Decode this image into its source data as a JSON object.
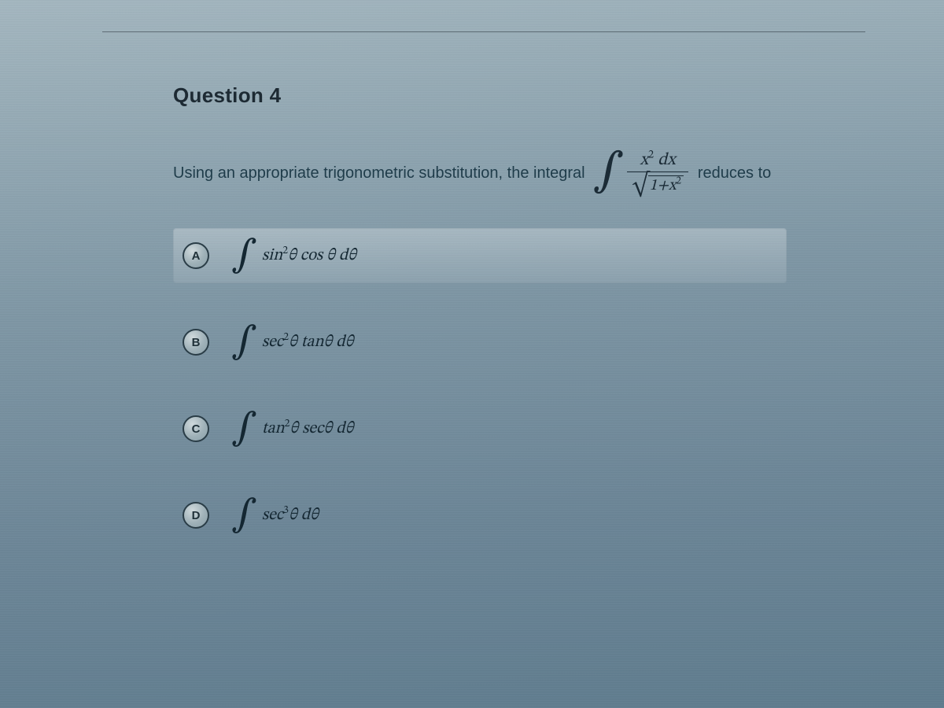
{
  "question": {
    "title": "Question 4",
    "prompt_lead": "Using an appropriate trigonometric substitution, the integral",
    "prompt_trail": "reduces to",
    "integral": {
      "numerator_html": "x<sup>2</sup> dx",
      "denom_radicand_html": "1+x<sup>2</sup>"
    }
  },
  "options": [
    {
      "letter": "A",
      "selected": true,
      "body_html": "sin<sup>2</sup>θ&nbsp;cos θ&nbsp;dθ"
    },
    {
      "letter": "B",
      "selected": false,
      "body_html": "sec<sup>2</sup>θ&nbsp;tanθ&nbsp;dθ"
    },
    {
      "letter": "C",
      "selected": false,
      "body_html": "tan<sup>2</sup>θ&nbsp;secθ&nbsp;dθ"
    },
    {
      "letter": "D",
      "selected": false,
      "body_html": "sec<sup>3</sup>θ&nbsp;dθ"
    }
  ],
  "style": {
    "text_color": "#1f3c4a",
    "math_color": "#1b2b36"
  }
}
